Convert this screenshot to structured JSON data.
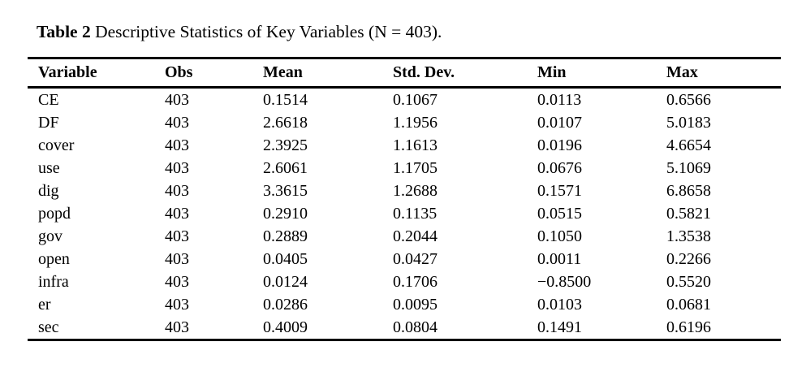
{
  "caption": {
    "label": "Table 2",
    "text": "Descriptive Statistics of Key Variables (N = 403)."
  },
  "table": {
    "columns": [
      "Variable",
      "Obs",
      "Mean",
      "Std. Dev.",
      "Min",
      "Max"
    ],
    "rows": [
      [
        "CE",
        "403",
        "0.1514",
        "0.1067",
        "0.0113",
        "0.6566"
      ],
      [
        "DF",
        "403",
        "2.6618",
        "1.1956",
        "0.0107",
        "5.0183"
      ],
      [
        "cover",
        "403",
        "2.3925",
        "1.1613",
        "0.0196",
        "4.6654"
      ],
      [
        "use",
        "403",
        "2.6061",
        "1.1705",
        "0.0676",
        "5.1069"
      ],
      [
        "dig",
        "403",
        "3.3615",
        "1.2688",
        "0.1571",
        "6.8658"
      ],
      [
        "popd",
        "403",
        "0.2910",
        "0.1135",
        "0.0515",
        "0.5821"
      ],
      [
        "gov",
        "403",
        "0.2889",
        "0.2044",
        "0.1050",
        "1.3538"
      ],
      [
        "open",
        "403",
        "0.0405",
        "0.0427",
        "0.0011",
        "0.2266"
      ],
      [
        "infra",
        "403",
        "0.0124",
        "0.1706",
        "−0.8500",
        "0.5520"
      ],
      [
        "er",
        "403",
        "0.0286",
        "0.0095",
        "0.0103",
        "0.0681"
      ],
      [
        "sec",
        "403",
        "0.4009",
        "0.0804",
        "0.1491",
        "0.6196"
      ]
    ]
  },
  "colors": {
    "text": "#000000",
    "background": "#ffffff",
    "rule": "#000000"
  },
  "chart_data": {
    "type": "table",
    "title": "Table 2 Descriptive Statistics of Key Variables (N = 403).",
    "columns": [
      "Variable",
      "Obs",
      "Mean",
      "Std. Dev.",
      "Min",
      "Max"
    ],
    "rows": [
      [
        "CE",
        403,
        0.1514,
        0.1067,
        0.0113,
        0.6566
      ],
      [
        "DF",
        403,
        2.6618,
        1.1956,
        0.0107,
        5.0183
      ],
      [
        "cover",
        403,
        2.3925,
        1.1613,
        0.0196,
        4.6654
      ],
      [
        "use",
        403,
        2.6061,
        1.1705,
        0.0676,
        5.1069
      ],
      [
        "dig",
        403,
        3.3615,
        1.2688,
        0.1571,
        6.8658
      ],
      [
        "popd",
        403,
        0.291,
        0.1135,
        0.0515,
        0.5821
      ],
      [
        "gov",
        403,
        0.2889,
        0.2044,
        0.105,
        1.3538
      ],
      [
        "open",
        403,
        0.0405,
        0.0427,
        0.0011,
        0.2266
      ],
      [
        "infra",
        403,
        0.0124,
        0.1706,
        -0.85,
        0.552
      ],
      [
        "er",
        403,
        0.0286,
        0.0095,
        0.0103,
        0.0681
      ],
      [
        "sec",
        403,
        0.4009,
        0.0804,
        0.1491,
        0.6196
      ]
    ]
  }
}
